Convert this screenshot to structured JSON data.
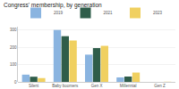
{
  "chart_data": {
    "type": "bar",
    "title": "Congress' membership, by generation",
    "categories": [
      "Silent",
      "Baby boomers",
      "Gen X",
      "Millennial",
      "Gen Z"
    ],
    "series": [
      {
        "name": "2019",
        "color": "#8ab4e0",
        "values": [
          42,
          301,
          158,
          26,
          0
        ]
      },
      {
        "name": "2021",
        "color": "#2f5d4a",
        "values": [
          30,
          265,
          196,
          31,
          0
        ]
      },
      {
        "name": "2023",
        "color": "#f0d060",
        "values": [
          22,
          240,
          209,
          54,
          1
        ]
      }
    ],
    "ylim": [
      0,
      320
    ],
    "yticks": [
      0,
      100,
      200,
      300
    ],
    "grid": true,
    "legend": "top-left"
  }
}
